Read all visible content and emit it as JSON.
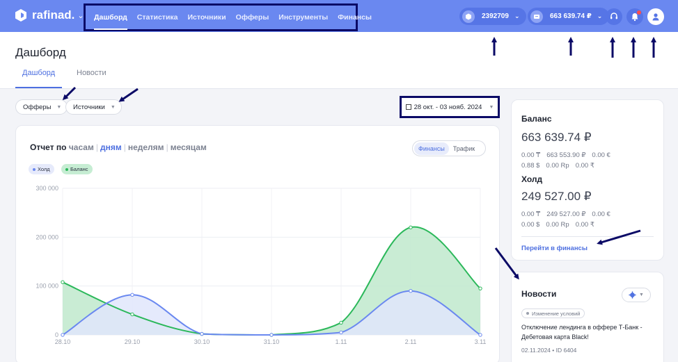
{
  "app": {
    "logo_text": "rafinad."
  },
  "nav": {
    "items": [
      "Дашборд",
      "Статистика",
      "Источники",
      "Офферы",
      "Инструменты",
      "Финансы"
    ],
    "active_index": 0
  },
  "account": {
    "id": "2392709",
    "balance": "663 639.74 ₽"
  },
  "icons": {
    "support": "headset-icon",
    "notifications": "bell-icon",
    "profile": "user-icon"
  },
  "page": {
    "title": "Дашборд",
    "tabs": [
      "Дашборд",
      "Новости"
    ],
    "active_tab": 0
  },
  "filters": {
    "offers": "Офферы",
    "sources": "Источники",
    "date_range": "28 окт. - 03 нояб. 2024"
  },
  "report": {
    "title_prefix": "Отчет по",
    "periods": [
      "часам",
      "дням",
      "неделям",
      "месяцам"
    ],
    "active_period": 1,
    "toggle": [
      "Финансы",
      "Трафик"
    ],
    "active_toggle": 0,
    "badges": [
      {
        "label": "Холд",
        "color": "#6a88f0"
      },
      {
        "label": "Баланс",
        "color": "#2bb85a"
      }
    ]
  },
  "chart_data": {
    "type": "area",
    "x": [
      "28.10",
      "29.10",
      "30.10",
      "31.10",
      "1.11",
      "2.11",
      "3.11"
    ],
    "y_ticks": [
      "0",
      "100 000",
      "200 000",
      "300 000"
    ],
    "ylim": [
      0,
      300000
    ],
    "series": [
      {
        "name": "Баланс",
        "color": "#2bb85a",
        "fill": "#bfe9cc",
        "values": [
          108000,
          42000,
          2000,
          0,
          25000,
          220000,
          95000
        ]
      },
      {
        "name": "Холд",
        "color": "#6a88f0",
        "fill": "#e1e6fb",
        "values": [
          0,
          82000,
          2000,
          0,
          5000,
          90000,
          0
        ]
      }
    ]
  },
  "balance": {
    "title": "Баланс",
    "value": "663 639.74 ₽",
    "row1": [
      "0.00 ₸",
      "663 553.90 ₽",
      "0.00 €"
    ],
    "row2": [
      "0.88 $",
      "0.00 Rp",
      "0.00 ₹"
    ]
  },
  "hold": {
    "title": "Холд",
    "value": "249 527.00 ₽",
    "row1": [
      "0.00 ₸",
      "249 527.00 ₽",
      "0.00 €"
    ],
    "row2": [
      "0.00 $",
      "0.00 Rp",
      "0.00 ₹"
    ]
  },
  "finance_link": "Перейти в финансы",
  "news": {
    "title": "Новости",
    "tag": "Изменение условий",
    "text": "Отключение лендинга в оффере Т-Банк - Дебетовая карта Black!",
    "meta": "02.11.2024 • ID 6404"
  },
  "colors": {
    "topbar": "#6a88f0",
    "accent": "#4d6fe0",
    "annotation": "#0b0a66"
  }
}
